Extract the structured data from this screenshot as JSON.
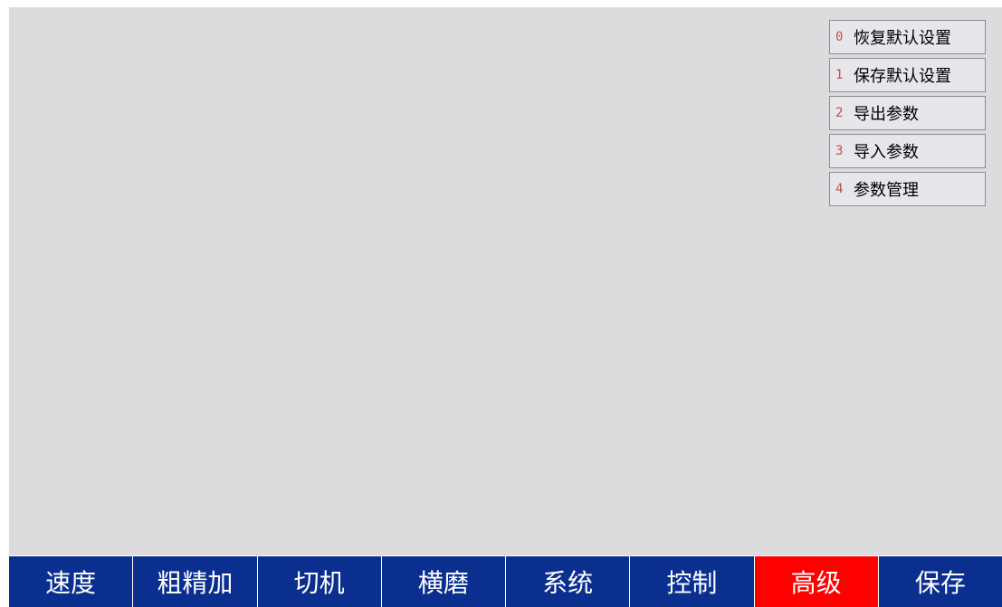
{
  "menu": {
    "items": [
      {
        "num": "0",
        "label": "恢复默认设置"
      },
      {
        "num": "1",
        "label": "保存默认设置"
      },
      {
        "num": "2",
        "label": "导出参数"
      },
      {
        "num": "3",
        "label": "导入参数"
      },
      {
        "num": "4",
        "label": "参数管理"
      }
    ]
  },
  "tabs": [
    {
      "label": "速度",
      "active": false
    },
    {
      "label": "粗精加",
      "active": false
    },
    {
      "label": "切机",
      "active": false
    },
    {
      "label": "横磨",
      "active": false
    },
    {
      "label": "系统",
      "active": false
    },
    {
      "label": "控制",
      "active": false
    },
    {
      "label": "高级",
      "active": true
    },
    {
      "label": "保存",
      "active": false
    }
  ],
  "colors": {
    "background": "#dcdbdd",
    "tabbar": "#0b2f8f",
    "active_tab": "#ff0000",
    "menu_number": "#c0504d"
  }
}
